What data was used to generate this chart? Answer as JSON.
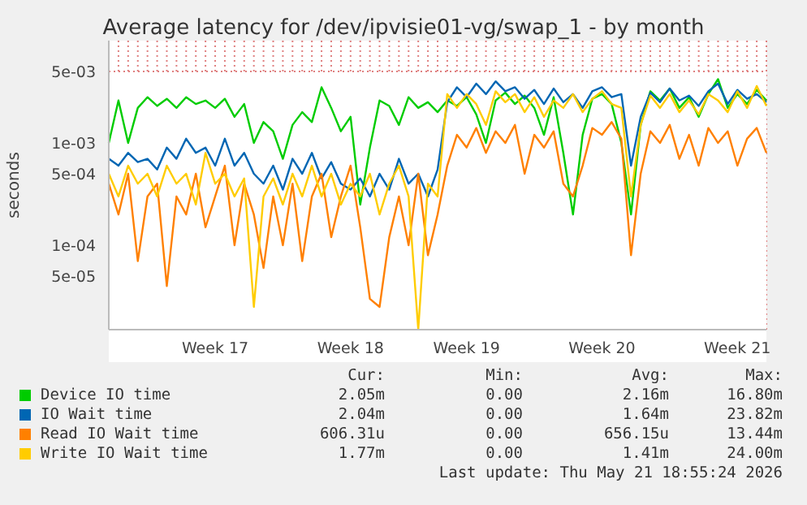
{
  "chart_data": {
    "type": "line",
    "title": "Average latency for /dev/ipvisie01-vg/swap_1 - by month",
    "ylabel": "seconds",
    "log": "y",
    "grid": true,
    "legend": "bottom",
    "marker": "none",
    "line_style": "solid",
    "categories": [
      null,
      null,
      null,
      null,
      null,
      null,
      null,
      null,
      null,
      null,
      null,
      "Week 17",
      null,
      null,
      null,
      null,
      null,
      null,
      null,
      null,
      null,
      null,
      null,
      null,
      null,
      "Week 18",
      null,
      null,
      null,
      null,
      null,
      null,
      null,
      null,
      null,
      null,
      null,
      "Week 19",
      null,
      null,
      null,
      null,
      null,
      null,
      null,
      null,
      null,
      null,
      null,
      null,
      null,
      "Week 20",
      null,
      null,
      null,
      null,
      null,
      null,
      null,
      null,
      null,
      null,
      null,
      null,
      null,
      "Week 21",
      null,
      null,
      null
    ],
    "ylim": [
      1.5e-05,
      0.01
    ],
    "yticks": [
      {
        "value": 5e-05,
        "label": "5e-05"
      },
      {
        "value": 0.0001,
        "label": "1e-04"
      },
      {
        "value": 0.0005,
        "label": "5e-04"
      },
      {
        "value": 0.001,
        "label": "1e-03"
      },
      {
        "value": 0.005,
        "label": "5e-03"
      }
    ],
    "series": [
      {
        "name": "Device IO time",
        "color": "#00cc00",
        "values": [
          0.001,
          0.0026,
          0.001,
          0.0022,
          0.0028,
          0.0023,
          0.0027,
          0.0022,
          0.0028,
          0.0024,
          0.0026,
          0.0022,
          0.0027,
          0.0018,
          0.0024,
          0.001,
          0.0016,
          0.0013,
          0.0007,
          0.0015,
          0.002,
          0.0016,
          0.0035,
          0.0022,
          0.0013,
          0.0018,
          0.00025,
          0.0009,
          0.0026,
          0.0023,
          0.0015,
          0.0028,
          0.0022,
          0.0025,
          0.002,
          0.0026,
          0.0023,
          0.0028,
          0.0019,
          0.001,
          0.0026,
          0.0031,
          0.0024,
          0.0029,
          0.0022,
          0.0012,
          0.0028,
          0.0008,
          0.0002,
          0.0012,
          0.0027,
          0.003,
          0.0024,
          0.001,
          0.0002,
          0.0015,
          0.0032,
          0.0026,
          0.0034,
          0.0022,
          0.0028,
          0.0018,
          0.003,
          0.0042,
          0.0022,
          0.003,
          0.0024,
          0.0033,
          0.0026
        ]
      },
      {
        "name": "IO Wait time",
        "color": "#0066b3",
        "values": [
          0.0007,
          0.0006,
          0.0008,
          0.00065,
          0.0007,
          0.00055,
          0.0009,
          0.0007,
          0.0011,
          0.0008,
          0.0009,
          0.0006,
          0.0011,
          0.0006,
          0.0008,
          0.0005,
          0.0004,
          0.0006,
          0.00035,
          0.0007,
          0.0005,
          0.0008,
          0.00045,
          0.00065,
          0.0004,
          0.00035,
          0.00045,
          0.0003,
          0.0005,
          0.00035,
          0.0007,
          0.0004,
          0.0005,
          0.0003,
          0.00055,
          0.0025,
          0.0035,
          0.0028,
          0.0038,
          0.003,
          0.004,
          0.0032,
          0.0035,
          0.0027,
          0.0033,
          0.0024,
          0.0034,
          0.0025,
          0.003,
          0.0022,
          0.0032,
          0.0035,
          0.0028,
          0.003,
          0.0006,
          0.0018,
          0.0031,
          0.0025,
          0.0034,
          0.0026,
          0.0029,
          0.0023,
          0.0032,
          0.0038,
          0.0024,
          0.0033,
          0.0027,
          0.003,
          0.0025
        ]
      },
      {
        "name": "Read IO Wait time",
        "color": "#ff8000",
        "values": [
          0.0004,
          0.0002,
          0.0005,
          7e-05,
          0.0003,
          0.0004,
          4e-05,
          0.0003,
          0.0002,
          0.0005,
          0.00015,
          0.0003,
          0.0006,
          0.0001,
          0.0004,
          0.0002,
          6e-05,
          0.0003,
          0.0001,
          0.0004,
          7e-05,
          0.0003,
          0.0005,
          0.00012,
          0.0003,
          0.0006,
          0.00015,
          3e-05,
          2.5e-05,
          0.00012,
          0.0003,
          0.0001,
          0.0005,
          8e-05,
          0.0002,
          0.0006,
          0.0012,
          0.0009,
          0.0014,
          0.0008,
          0.0013,
          0.001,
          0.0015,
          0.0005,
          0.0012,
          0.0009,
          0.0013,
          0.0004,
          0.0003,
          0.0006,
          0.0014,
          0.0012,
          0.0016,
          0.0011,
          8e-05,
          0.0005,
          0.0013,
          0.001,
          0.0015,
          0.0007,
          0.0012,
          0.0006,
          0.0014,
          0.001,
          0.0013,
          0.0006,
          0.0011,
          0.0014,
          0.0008
        ]
      },
      {
        "name": "Write IO Wait time",
        "color": "#ffcc00",
        "values": [
          0.0005,
          0.0003,
          0.0006,
          0.0004,
          0.0005,
          0.0003,
          0.0006,
          0.0004,
          0.0005,
          0.00025,
          0.0008,
          0.0004,
          0.0005,
          0.0003,
          0.00045,
          2.5e-05,
          0.0003,
          0.00045,
          0.00025,
          0.0005,
          0.0003,
          0.0006,
          0.0003,
          0.0005,
          0.00025,
          0.0004,
          0.0003,
          0.0005,
          0.0002,
          0.0004,
          0.0006,
          0.0003,
          1.5e-05,
          0.0004,
          0.0003,
          0.003,
          0.0022,
          0.003,
          0.0024,
          0.0015,
          0.0032,
          0.0025,
          0.003,
          0.002,
          0.0028,
          0.0018,
          0.0026,
          0.0022,
          0.003,
          0.002,
          0.0027,
          0.0032,
          0.0024,
          0.0022,
          0.0003,
          0.0015,
          0.0029,
          0.0022,
          0.003,
          0.002,
          0.0026,
          0.0019,
          0.003,
          0.0026,
          0.002,
          0.0032,
          0.0022,
          0.0036,
          0.0023
        ]
      }
    ],
    "annotations": [
      "Cur:",
      "Min:",
      "Avg:",
      "Max:",
      "2.05m",
      "0.00",
      "2.16m",
      "16.80m",
      "2.04m",
      "0.00",
      "1.64m",
      "23.82m",
      "606.31u",
      "0.00",
      "656.15u",
      "13.44m",
      "1.77m",
      "0.00",
      "1.41m",
      "24.00m",
      "Last update: Thu May 21 18:55:24 2026"
    ]
  }
}
